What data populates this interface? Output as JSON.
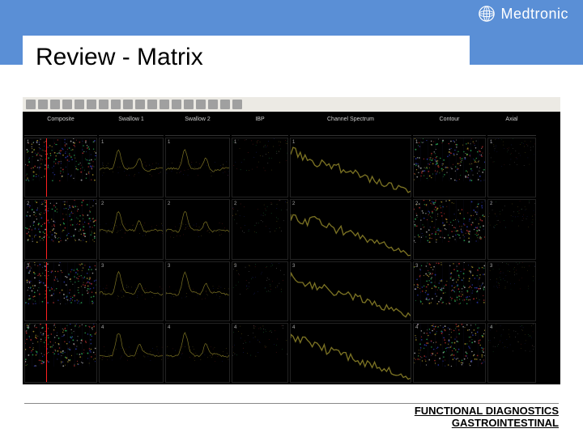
{
  "header": {
    "brand": "Medtronic"
  },
  "title": "Review - Matrix",
  "screenshot": {
    "columns": [
      "Composite",
      "Swallow 1",
      "Swallow 2",
      "IBP",
      "Channel Spectrum",
      "Contour",
      "Axial"
    ],
    "rows": [
      "1",
      "2",
      "3",
      "4"
    ],
    "noise_colors": [
      "#4050ff",
      "#ffdd40",
      "#ff4040",
      "#40ff80",
      "#ffffff"
    ],
    "grid_color": "#1a1a3a",
    "red_marker": "#ff2020",
    "trace_color": "#e0d040",
    "toolbar_icons": 18
  },
  "footer": {
    "line1": "FUNCTIONAL DIAGNOSTICS",
    "line2": "GASTROINTESTINAL"
  },
  "colors": {
    "header_band": "#5a8fd6",
    "title_bg": "#ffffff",
    "title_text": "#000000",
    "screenshot_bg": "#000000"
  }
}
